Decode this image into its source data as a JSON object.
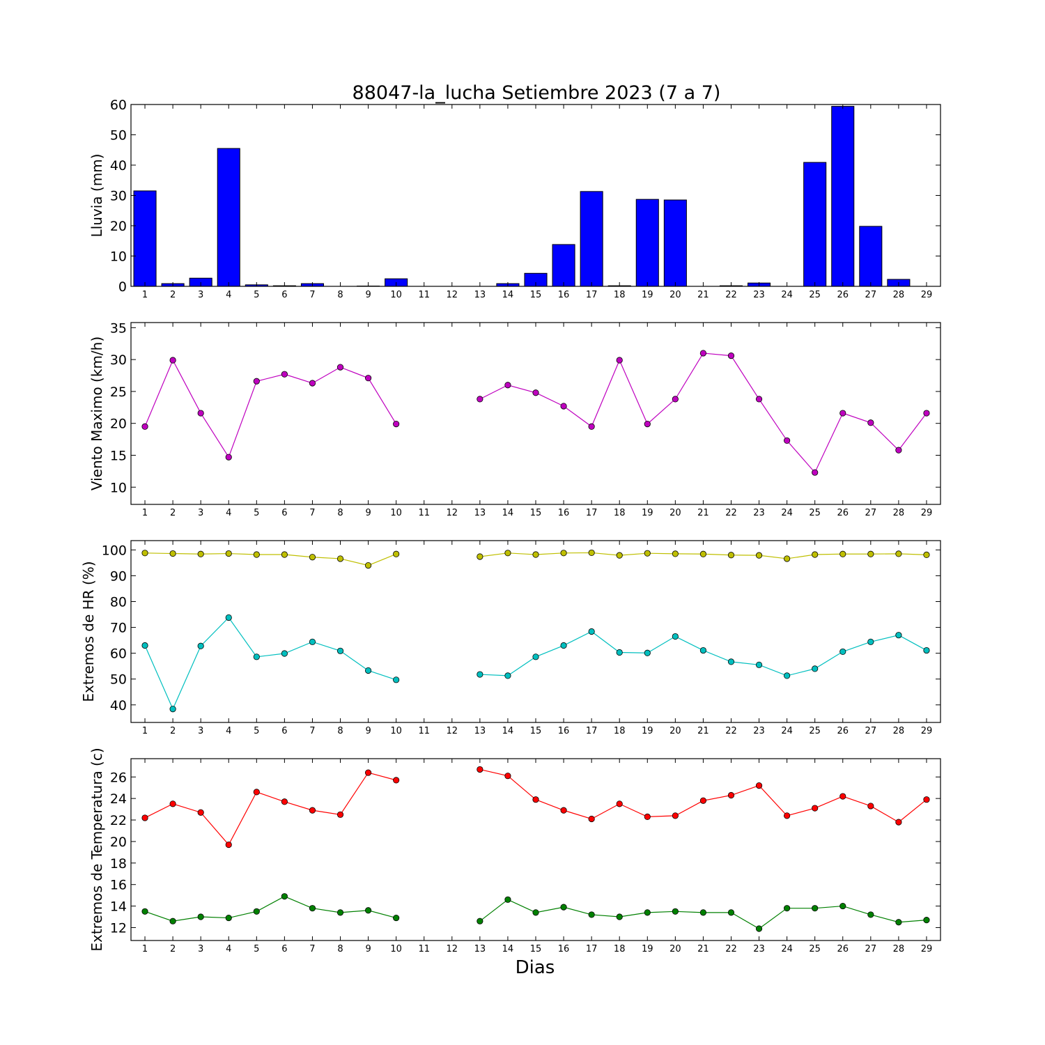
{
  "title": "88047-la_lucha Setiembre 2023  (7 a 7)",
  "xlabel": "Dias",
  "days": [
    1,
    2,
    3,
    4,
    5,
    6,
    7,
    8,
    9,
    10,
    11,
    12,
    13,
    14,
    15,
    16,
    17,
    18,
    19,
    20,
    21,
    22,
    23,
    24,
    25,
    26,
    27,
    28,
    29
  ],
  "colors": {
    "rain": "#0000ff",
    "wind": "#bf00bf",
    "hr_max": "#bfbf00",
    "hr_min": "#00bfbf",
    "t_max": "#ff0000",
    "t_min": "#008000"
  },
  "chart_data": [
    {
      "type": "bar",
      "ylabel": "Lluvia (mm)",
      "ylim": [
        0,
        60
      ],
      "yticks": [
        0,
        10,
        20,
        30,
        40,
        50,
        60
      ],
      "categories": [
        1,
        2,
        3,
        4,
        5,
        6,
        7,
        8,
        9,
        10,
        11,
        12,
        13,
        14,
        15,
        16,
        17,
        18,
        19,
        20,
        21,
        22,
        23,
        24,
        25,
        26,
        27,
        28,
        29
      ],
      "series": [
        {
          "values": [
            31.5,
            0.9,
            2.7,
            45.5,
            0.5,
            0.2,
            0.9,
            0,
            0.1,
            2.5,
            0,
            0,
            0,
            0.9,
            4.3,
            13.8,
            31.3,
            0.2,
            28.7,
            28.5,
            0,
            0.2,
            1.1,
            0,
            40.9,
            59.4,
            19.8,
            2.3,
            0
          ]
        }
      ]
    },
    {
      "type": "line",
      "ylabel": "Viento Maximo (km/h)",
      "ylim": [
        7.3,
        35.8
      ],
      "yticks": [
        10,
        15,
        20,
        25,
        30,
        35
      ],
      "x": [
        1,
        2,
        3,
        4,
        5,
        6,
        7,
        8,
        9,
        10,
        11,
        12,
        13,
        14,
        15,
        16,
        17,
        18,
        19,
        20,
        21,
        22,
        23,
        24,
        25,
        26,
        27,
        28,
        29
      ],
      "series": [
        {
          "values": [
            19.5,
            29.9,
            21.6,
            14.7,
            26.6,
            27.7,
            26.3,
            28.8,
            27.1,
            19.9,
            null,
            null,
            23.8,
            26.0,
            24.8,
            22.7,
            19.5,
            29.9,
            19.9,
            23.8,
            31.0,
            30.6,
            23.8,
            17.3,
            12.3,
            21.6,
            20.1,
            15.8,
            21.6
          ]
        }
      ]
    },
    {
      "type": "line",
      "ylabel": "Extremos de HR (%)",
      "ylim": [
        33.2,
        103.6
      ],
      "yticks": [
        40,
        50,
        60,
        70,
        80,
        90,
        100
      ],
      "x": [
        1,
        2,
        3,
        4,
        5,
        6,
        7,
        8,
        9,
        10,
        11,
        12,
        13,
        14,
        15,
        16,
        17,
        18,
        19,
        20,
        21,
        22,
        23,
        24,
        25,
        26,
        27,
        28,
        29
      ],
      "series": [
        {
          "values": [
            98.8,
            98.6,
            98.4,
            98.6,
            98.2,
            98.2,
            97.2,
            96.6,
            94.0,
            98.4,
            null,
            null,
            97.4,
            98.8,
            98.2,
            98.8,
            98.9,
            97.9,
            98.7,
            98.5,
            98.4,
            98.0,
            97.9,
            96.6,
            98.2,
            98.4,
            98.4,
            98.5,
            98.1
          ]
        },
        {
          "values": [
            63.0,
            38.4,
            62.8,
            73.8,
            58.6,
            59.9,
            64.4,
            60.9,
            53.3,
            49.7,
            null,
            null,
            51.8,
            51.3,
            58.6,
            63.0,
            68.4,
            60.3,
            60.1,
            66.5,
            61.1,
            56.7,
            55.5,
            51.3,
            54.0,
            60.6,
            64.4,
            67.0,
            61.1
          ]
        }
      ]
    },
    {
      "type": "line",
      "ylabel": "Extremos de Temperatura (c)",
      "ylim": [
        10.8,
        27.7
      ],
      "yticks": [
        12,
        14,
        16,
        18,
        20,
        22,
        24,
        26
      ],
      "x": [
        1,
        2,
        3,
        4,
        5,
        6,
        7,
        8,
        9,
        10,
        11,
        12,
        13,
        14,
        15,
        16,
        17,
        18,
        19,
        20,
        21,
        22,
        23,
        24,
        25,
        26,
        27,
        28,
        29
      ],
      "series": [
        {
          "values": [
            22.2,
            23.5,
            22.7,
            19.7,
            24.6,
            23.7,
            22.9,
            22.5,
            26.4,
            25.7,
            null,
            null,
            26.7,
            26.1,
            23.9,
            22.9,
            22.1,
            23.5,
            22.3,
            22.4,
            23.8,
            24.3,
            25.2,
            22.4,
            23.1,
            24.2,
            23.3,
            21.8,
            23.9
          ]
        },
        {
          "values": [
            13.5,
            12.6,
            13.0,
            12.9,
            13.5,
            14.9,
            13.8,
            13.4,
            13.6,
            12.9,
            null,
            null,
            12.6,
            14.6,
            13.4,
            13.9,
            13.2,
            13.0,
            13.4,
            13.5,
            13.4,
            13.4,
            11.9,
            13.8,
            13.8,
            14.0,
            13.2,
            12.5,
            12.7
          ]
        }
      ]
    }
  ]
}
